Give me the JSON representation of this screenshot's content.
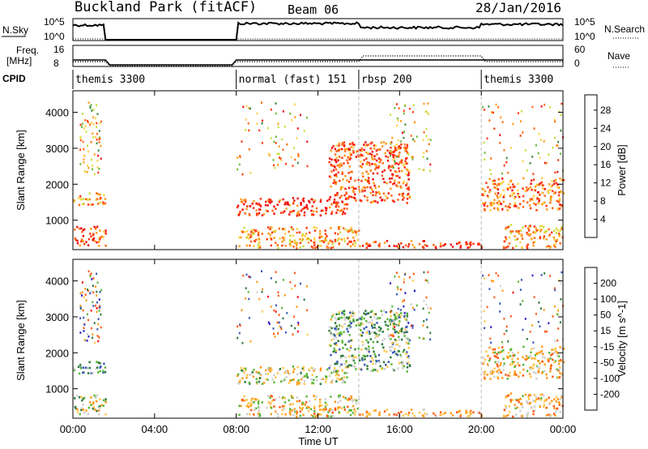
{
  "header": {
    "site": "Buckland Park (fitACF)",
    "beam": "Beam 06",
    "date": "28/Jan/2016"
  },
  "noise_panel": {
    "left_label": "N.Sky",
    "left_ticks": [
      "10^5",
      "10^0"
    ],
    "right_label": "N.Search",
    "right_ticks": [
      "10^5",
      "10^0"
    ]
  },
  "freq_panel": {
    "left_label_1": "Freq.",
    "left_label_2": "[MHz]",
    "left_ticks": [
      "16",
      "8"
    ],
    "right_label": "Nave",
    "right_ticks": [
      "60",
      "0"
    ]
  },
  "cpid": {
    "label": "CPID",
    "segments": [
      {
        "name": "themis 3300",
        "start_h": 0.0,
        "end_h": 1.6
      },
      {
        "name": "normal (fast) 151",
        "start_h": 8.0,
        "end_h": 14.0
      },
      {
        "name": "rbsp 200",
        "start_h": 14.0,
        "end_h": 20.0
      },
      {
        "name": "themis 3300",
        "start_h": 20.0,
        "end_h": 24.0
      }
    ]
  },
  "axes": {
    "xlabel": "Time UT",
    "x_ticks": [
      "00:00",
      "04:00",
      "08:00",
      "12:00",
      "16:00",
      "20:00",
      "00:00"
    ],
    "ylabel": "Slant Range [km]",
    "y_ticks": [
      "1000",
      "2000",
      "3000",
      "4000"
    ]
  },
  "colorbars": {
    "power": {
      "label": "Power [dB]",
      "ticks": [
        "4",
        "8",
        "12",
        "16",
        "20",
        "24",
        "28"
      ],
      "colors": [
        "#1c1cff",
        "#2a4fb4",
        "#3d8a3d",
        "#6dbb3c",
        "#c8de3a",
        "#ffd24a",
        "#ff9a1a",
        "#ff6a14",
        "#ff3a10",
        "#ef0f0f"
      ]
    },
    "velocity": {
      "label": "Velocity [m s^-1]",
      "ticks": [
        "200",
        "100",
        "50",
        "15",
        "-15",
        "-50",
        "-100",
        "-200"
      ],
      "colors": [
        "#2a1ec8",
        "#3b5ab8",
        "#2e7a3a",
        "#5cb83a",
        "#cfcfcf",
        "#ffc64a",
        "#ff9a1a",
        "#ff5a14",
        "#ef0f0f"
      ]
    }
  },
  "chart_data": {
    "type": "heatmap",
    "title": "Buckland Park (fitACF)",
    "xlabel": "Time UT",
    "ylabel": "Slant Range [km]",
    "xlim_hours": [
      0,
      24
    ],
    "ylim_km": [
      180,
      4600
    ],
    "data_gaps_hours": [
      [
        1.6,
        8.0
      ]
    ],
    "mode_change_hours": [
      14.0,
      20.0
    ],
    "power_db_range": [
      0,
      30
    ],
    "velocity_range": [
      -200,
      250
    ],
    "scatter_regions": [
      {
        "t": [
          0.0,
          1.6
        ],
        "r": [
          300,
          850
        ],
        "power": 24,
        "velocity": 0
      },
      {
        "t": [
          0.0,
          1.6
        ],
        "r": [
          1450,
          1800
        ],
        "power": 20,
        "velocity": 60
      },
      {
        "t": [
          8.0,
          13.5
        ],
        "r": [
          1150,
          1650
        ],
        "power": 26,
        "velocity": -10
      },
      {
        "t": [
          8.0,
          14.0
        ],
        "r": [
          250,
          850
        ],
        "power": 20,
        "velocity": -30
      },
      {
        "t": [
          12.5,
          16.5
        ],
        "r": [
          1500,
          3200
        ],
        "power": 24,
        "velocity": 40
      },
      {
        "t": [
          14.0,
          20.0
        ],
        "r": [
          250,
          450
        ],
        "power": 26,
        "velocity": -80
      },
      {
        "t": [
          20.0,
          24.0
        ],
        "r": [
          1300,
          2200
        ],
        "power": 22,
        "velocity": -40
      },
      {
        "t": [
          21.0,
          24.0
        ],
        "r": [
          250,
          900
        ],
        "power": 20,
        "velocity": -60
      }
    ]
  }
}
